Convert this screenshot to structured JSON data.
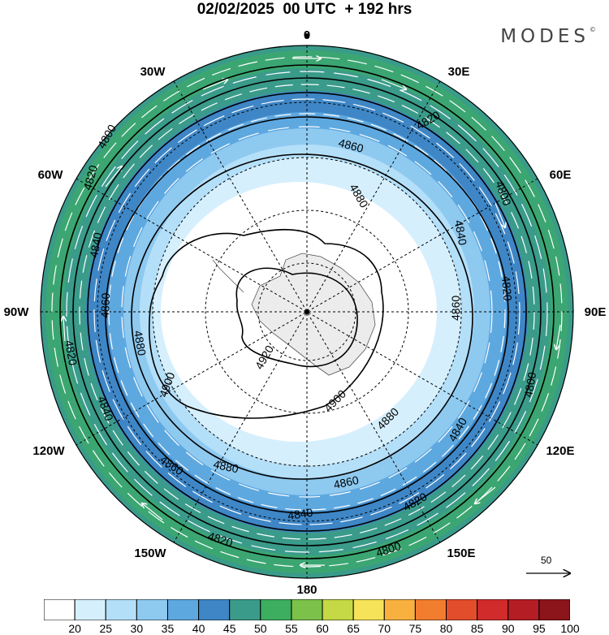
{
  "title": "02/02/2025  00 UTC  + 192 hrs",
  "brand": "MODES",
  "brand_mark": "©",
  "map": {
    "projection": "south polar stereographic",
    "longitude_labels": [
      {
        "text": "0",
        "lon": 0
      },
      {
        "text": "30E",
        "lon": 30
      },
      {
        "text": "60E",
        "lon": 60
      },
      {
        "text": "90E",
        "lon": 90
      },
      {
        "text": "120E",
        "lon": 120
      },
      {
        "text": "150E",
        "lon": 150
      },
      {
        "text": "180",
        "lon": 180
      },
      {
        "text": "150W",
        "lon": -150
      },
      {
        "text": "120W",
        "lon": -120
      },
      {
        "text": "90W",
        "lon": -90
      },
      {
        "text": "60W",
        "lon": -60
      },
      {
        "text": "30W",
        "lon": -30
      }
    ],
    "contour_labels": [
      {
        "text": "4800"
      },
      {
        "text": "4820"
      },
      {
        "text": "4840"
      },
      {
        "text": "4860"
      },
      {
        "text": "4880"
      },
      {
        "text": "4900"
      },
      {
        "text": "4920"
      }
    ],
    "reference_vector": "50"
  },
  "colorbar": {
    "ticks": [
      "20",
      "25",
      "30",
      "35",
      "40",
      "45",
      "50",
      "55",
      "60",
      "65",
      "70",
      "75",
      "80",
      "85",
      "90",
      "95",
      "100"
    ],
    "colors": [
      "#ffffff",
      "#d6effd",
      "#b4dff8",
      "#8ec9f0",
      "#5ea8e0",
      "#3e86c6",
      "#3a9b8a",
      "#3dae5f",
      "#7cc24a",
      "#c5d845",
      "#f7e35a",
      "#f8b13f",
      "#f27d2f",
      "#e24e2b",
      "#d22b2b",
      "#b51d24",
      "#8c141b"
    ]
  }
}
